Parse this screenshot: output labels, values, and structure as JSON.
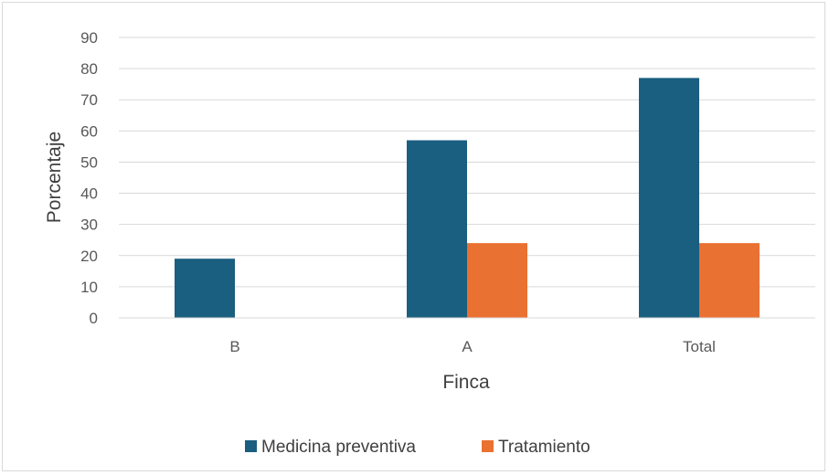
{
  "chart_data": {
    "type": "bar",
    "categories": [
      "B",
      "A",
      "Total"
    ],
    "series": [
      {
        "name": "Medicina preventiva",
        "values": [
          19,
          57,
          77
        ],
        "color": "#1a5e80"
      },
      {
        "name": "Tratamiento",
        "values": [
          0,
          24,
          24
        ],
        "color": "#e97132"
      }
    ],
    "xlabel": "Finca",
    "ylabel": "Porcentaje",
    "ylim": [
      0,
      90
    ],
    "yticks": [
      0,
      10,
      20,
      30,
      40,
      50,
      60,
      70,
      80,
      90
    ],
    "grid": true,
    "legend_position": "bottom"
  }
}
